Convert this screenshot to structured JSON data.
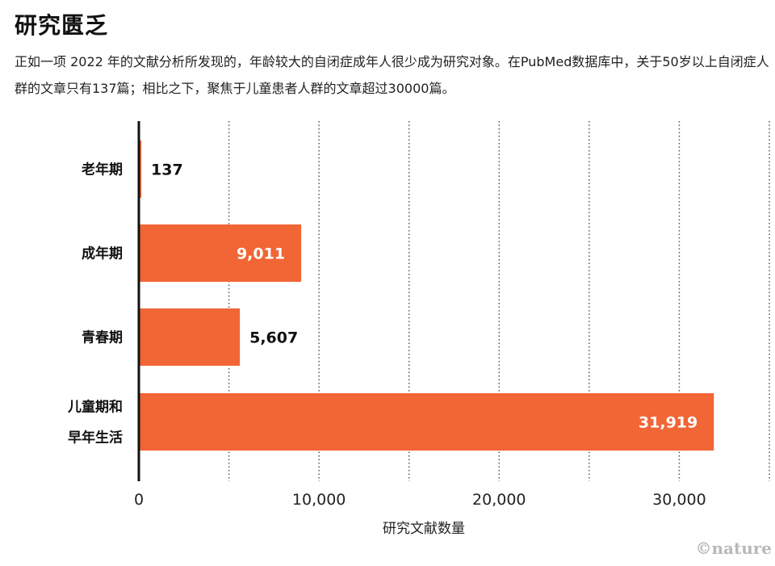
{
  "title": "研究匮乏",
  "subtitle": "正如一项 2022 年的文献分析所发现的，年龄较大的自闭症成年人很少成为研究对象。在PubMed数据库中，关于50岁以上自闭症人群的文章只有137篇；相比之下，聚焦于儿童患者人群的文章超过30000篇。",
  "credit": "©nature",
  "colors": {
    "bar": "#f26535",
    "axis": "#111111",
    "grid": "#555555",
    "label_dark": "#111111",
    "label_light": "#ffffff"
  },
  "chart_data": {
    "type": "bar",
    "orientation": "horizontal",
    "categories": [
      [
        "老年期"
      ],
      [
        "成年期"
      ],
      [
        "青春期"
      ],
      [
        "儿童期和",
        "早年生活"
      ]
    ],
    "values": [
      137,
      9011,
      5607,
      31919
    ],
    "value_labels": [
      "137",
      "9,011",
      "5,607",
      "31,919"
    ],
    "xlabel": "研究文献数量",
    "xlim": [
      0,
      35000
    ],
    "xticks": [
      0,
      10000,
      20000,
      30000
    ],
    "xtick_labels": [
      "0",
      "10,000",
      "20,000",
      "30,000"
    ],
    "gridlines": [
      5000,
      10000,
      15000,
      20000,
      25000,
      30000,
      35000
    ],
    "grid": true
  }
}
